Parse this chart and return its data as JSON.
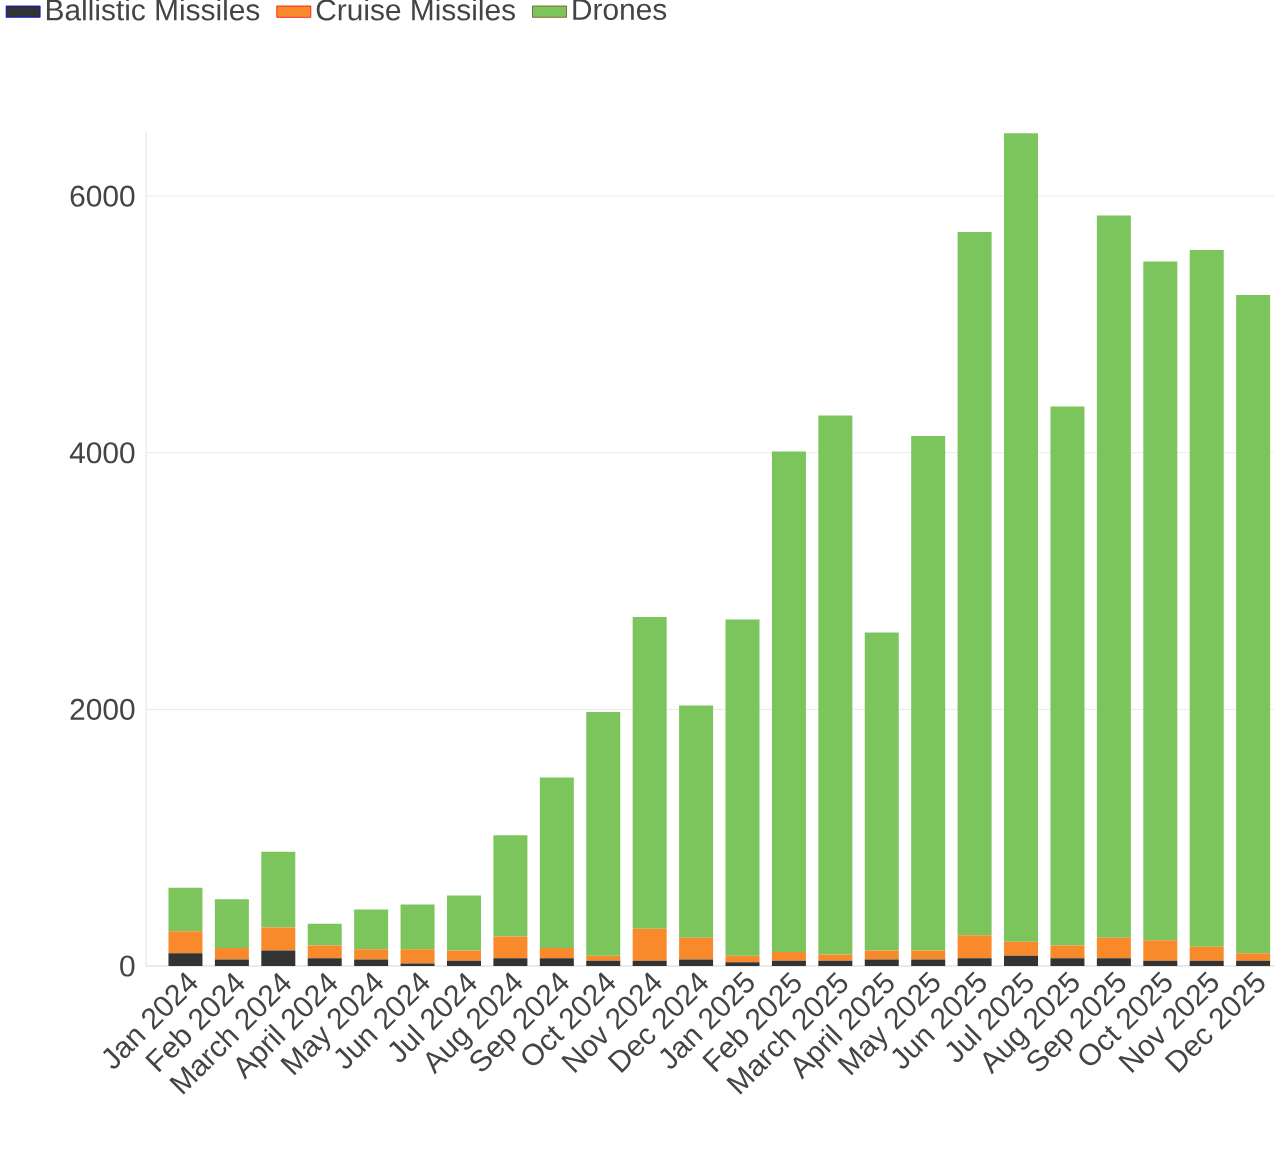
{
  "chart_data": {
    "type": "bar",
    "stacked": true,
    "categories": [
      "Jan 2024",
      "Feb 2024",
      "March 2024",
      "April 2024",
      "May 2024",
      "Jun 2024",
      "Jul 2024",
      "Aug 2024",
      "Sep 2024",
      "Oct 2024",
      "Nov 2024",
      "Dec 2024",
      "Jan 2025",
      "Feb 2025",
      "March 2025",
      "April 2025",
      "May 2025",
      "Jun 2025",
      "Jul 2025",
      "Aug 2025",
      "Sep 2025",
      "Oct 2025",
      "Nov 2025",
      "Dec 2025"
    ],
    "series": [
      {
        "name": "Ballistic Missiles",
        "color": "#333333",
        "values": [
          100,
          50,
          120,
          60,
          50,
          20,
          40,
          60,
          60,
          40,
          40,
          50,
          30,
          40,
          40,
          50,
          50,
          60,
          80,
          60,
          60,
          40,
          40,
          40
        ]
      },
      {
        "name": "Cruise Missiles",
        "color": "#f98a2b",
        "values": [
          170,
          90,
          180,
          100,
          80,
          110,
          80,
          170,
          80,
          40,
          250,
          170,
          50,
          70,
          50,
          70,
          70,
          180,
          110,
          100,
          160,
          160,
          110,
          60
        ]
      },
      {
        "name": "Drones",
        "color": "#7cc55c",
        "values": [
          340,
          380,
          590,
          170,
          310,
          350,
          430,
          790,
          1330,
          1900,
          2430,
          1810,
          2620,
          3900,
          4200,
          2480,
          4010,
          5480,
          6300,
          4200,
          5630,
          5290,
          5430,
          5130
        ]
      }
    ],
    "ylim": [
      0,
      6500
    ],
    "yticks": [
      0,
      2000,
      4000,
      6000
    ],
    "grid": "y",
    "legend": "top left"
  }
}
